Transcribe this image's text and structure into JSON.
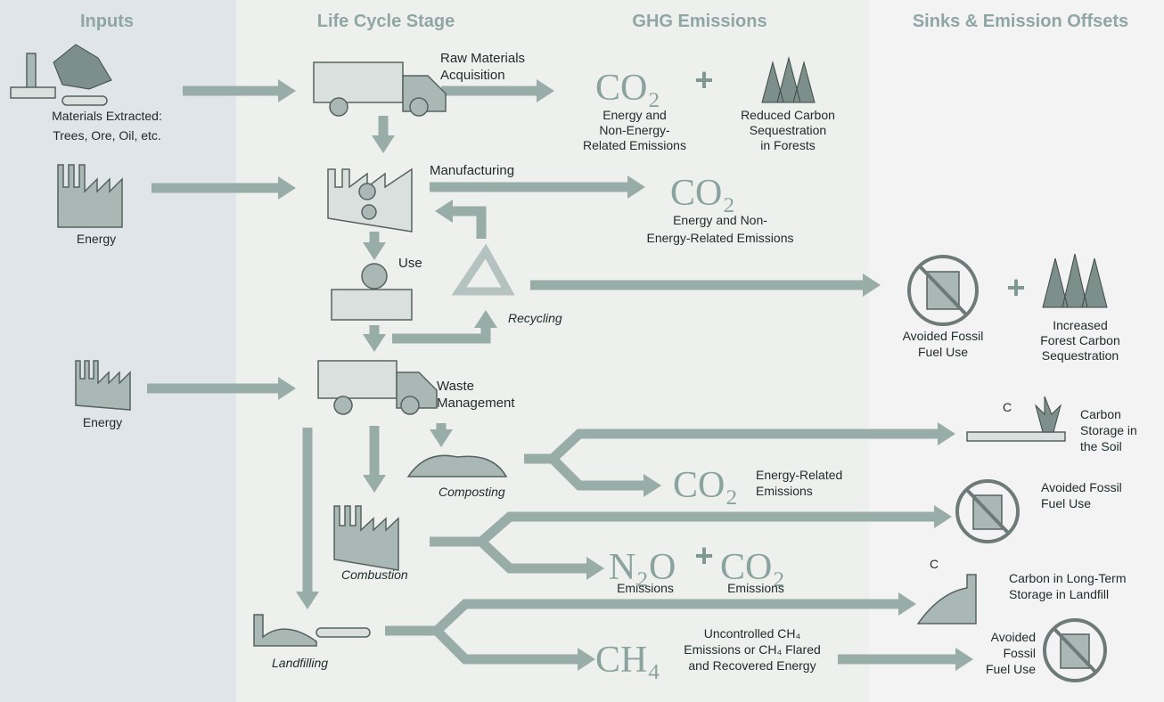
{
  "columns": [
    "Inputs",
    "Life Cycle Stage",
    "GHG Emissions",
    "Sinks & Emission Offsets"
  ],
  "inputs": {
    "materials": [
      "Materials Extracted:",
      "Trees, Ore, Oil, etc."
    ],
    "energy_1": "Energy",
    "energy_2": "Energy"
  },
  "stages": {
    "raw_materials": [
      "Raw Materials",
      "Acquisition"
    ],
    "manufacturing": "Manufacturing",
    "use": "Use",
    "recycling": "Recycling",
    "waste_management": [
      "Waste",
      "Management"
    ],
    "composting": "Composting",
    "combustion": "Combustion",
    "landfilling": "Landfilling"
  },
  "emissions": {
    "raw_materials": {
      "formula": "CO₂",
      "plus": "+",
      "label": [
        "Energy and",
        "Non-Energy-",
        "Related Emissions"
      ]
    },
    "manufacturing": {
      "formula": "CO₂",
      "label": [
        "Energy and Non-",
        "Energy-Related Emissions"
      ]
    },
    "composting": {
      "formula": "CO₂",
      "label": [
        "Energy-Related",
        "Emissions"
      ]
    },
    "combustion": {
      "formula_1": "N₂O",
      "plus": "+",
      "formula_2": "CO₂",
      "label_1": "Emissions",
      "label_2": "Emissions"
    },
    "landfilling": {
      "formula": "CH₄",
      "label": [
        "Uncontrolled CH₄",
        "Emissions or CH₄ Flared",
        "and Recovered Energy"
      ]
    }
  },
  "sinks": {
    "raw_materials": [
      "Reduced Carbon",
      "Sequestration",
      "in Forests"
    ],
    "recycling": {
      "fossil": [
        "Avoided Fossil",
        "Fuel Use"
      ],
      "plus": "+",
      "forest": [
        "Increased",
        "Forest Carbon",
        "Sequestration"
      ]
    },
    "composting": {
      "symbol": "C",
      "label": [
        "Carbon",
        "Storage in",
        "the Soil"
      ]
    },
    "combustion": [
      "Avoided Fossil",
      "Fuel Use"
    ],
    "landfill_storage": {
      "symbol": "C",
      "label": [
        "Carbon in Long-Term",
        "Storage in Landfill"
      ]
    },
    "landfill_energy": [
      "Avoided",
      "Fossil",
      "Fuel Use"
    ]
  }
}
